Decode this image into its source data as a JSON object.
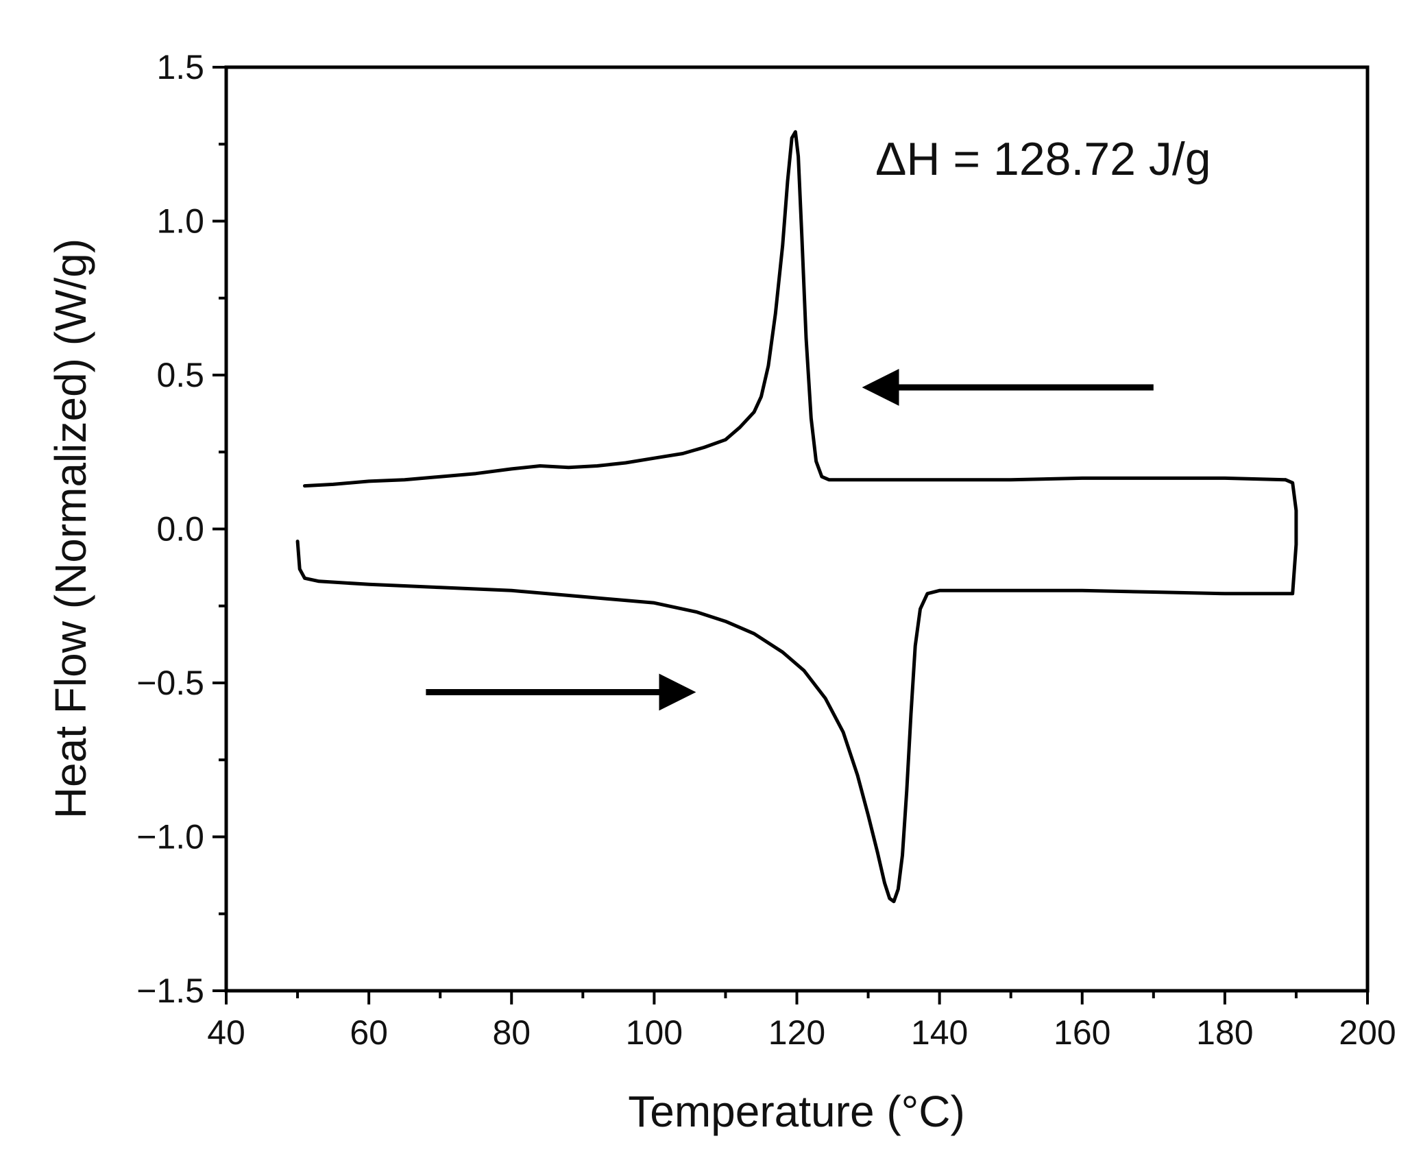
{
  "chart_data": {
    "type": "line",
    "title": "",
    "xlabel": "Temperature (°C)",
    "ylabel": "Heat Flow (Normalized) (W/g)",
    "xlim": [
      40,
      200
    ],
    "ylim": [
      -1.5,
      1.5
    ],
    "x_ticks": [
      "40",
      "60",
      "80",
      "100",
      "120",
      "140",
      "160",
      "180",
      "200"
    ],
    "y_ticks": [
      "−1.5",
      "−1.0",
      "−0.5",
      "0.0",
      "0.5",
      "1.0",
      "1.5"
    ],
    "grid": false,
    "legend": "none",
    "line_color": "#000000",
    "annotation": {
      "text": "ΔH = 128.72 J/g",
      "x": 131,
      "y": 1.15
    },
    "arrows": [
      {
        "from": [
          170,
          0.46
        ],
        "to": [
          130,
          0.46
        ],
        "direction": "cooling"
      },
      {
        "from": [
          68,
          -0.53
        ],
        "to": [
          105,
          -0.53
        ],
        "direction": "heating"
      }
    ],
    "series": [
      {
        "segment": "heating",
        "points": [
          [
            50.0,
            -0.04
          ],
          [
            50.3,
            -0.13
          ],
          [
            51.0,
            -0.16
          ],
          [
            53.0,
            -0.17
          ],
          [
            60,
            -0.18
          ],
          [
            70,
            -0.19
          ],
          [
            80,
            -0.2
          ],
          [
            90,
            -0.22
          ],
          [
            100,
            -0.24
          ],
          [
            106,
            -0.27
          ],
          [
            110,
            -0.3
          ],
          [
            114,
            -0.34
          ],
          [
            118,
            -0.4
          ],
          [
            121,
            -0.46
          ],
          [
            124,
            -0.55
          ],
          [
            126.5,
            -0.66
          ],
          [
            128.5,
            -0.8
          ],
          [
            130,
            -0.93
          ],
          [
            131.3,
            -1.05
          ],
          [
            132.3,
            -1.15
          ],
          [
            133.0,
            -1.2
          ],
          [
            133.6,
            -1.21
          ],
          [
            134.2,
            -1.17
          ],
          [
            134.8,
            -1.06
          ],
          [
            135.4,
            -0.85
          ],
          [
            136.0,
            -0.6
          ],
          [
            136.6,
            -0.38
          ],
          [
            137.3,
            -0.26
          ],
          [
            138.3,
            -0.21
          ],
          [
            140,
            -0.2
          ],
          [
            150,
            -0.2
          ],
          [
            160,
            -0.2
          ],
          [
            170,
            -0.205
          ],
          [
            180,
            -0.21
          ],
          [
            189.5,
            -0.21
          ],
          [
            190.0,
            -0.05
          ],
          [
            190.0,
            0.06
          ],
          [
            189.5,
            0.15
          ],
          [
            188.5,
            0.16
          ]
        ]
      },
      {
        "segment": "cooling",
        "points": [
          [
            188.5,
            0.16
          ],
          [
            180,
            0.165
          ],
          [
            170,
            0.165
          ],
          [
            160,
            0.165
          ],
          [
            150,
            0.16
          ],
          [
            140,
            0.16
          ],
          [
            130,
            0.16
          ],
          [
            124.5,
            0.16
          ],
          [
            123.5,
            0.17
          ],
          [
            122.7,
            0.22
          ],
          [
            122.0,
            0.36
          ],
          [
            121.3,
            0.62
          ],
          [
            120.7,
            0.95
          ],
          [
            120.2,
            1.21
          ],
          [
            119.8,
            1.29
          ],
          [
            119.3,
            1.27
          ],
          [
            118.7,
            1.13
          ],
          [
            118,
            0.92
          ],
          [
            117,
            0.7
          ],
          [
            116,
            0.53
          ],
          [
            115,
            0.43
          ],
          [
            114,
            0.38
          ],
          [
            112,
            0.33
          ],
          [
            110,
            0.29
          ],
          [
            107,
            0.265
          ],
          [
            104,
            0.245
          ],
          [
            100,
            0.23
          ],
          [
            96,
            0.215
          ],
          [
            92,
            0.205
          ],
          [
            88,
            0.2
          ],
          [
            84,
            0.205
          ],
          [
            80,
            0.195
          ],
          [
            75,
            0.18
          ],
          [
            70,
            0.17
          ],
          [
            65,
            0.16
          ],
          [
            60,
            0.155
          ],
          [
            55,
            0.145
          ],
          [
            51,
            0.14
          ]
        ]
      }
    ]
  }
}
